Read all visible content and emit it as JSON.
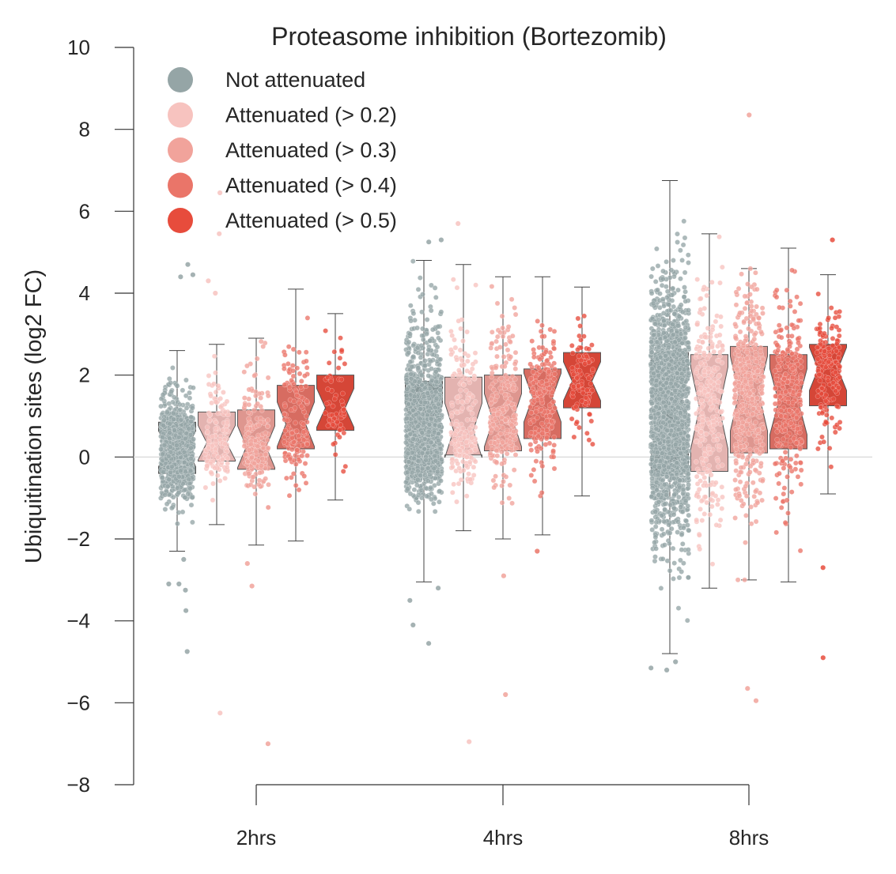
{
  "chart_data": {
    "type": "box",
    "title": "Proteasome inhibition (Bortezomib)",
    "xlabel": "",
    "ylabel": "Ubiquitination sites (log2 FC)",
    "ylim": [
      -8,
      10
    ],
    "yticks": [
      10,
      8,
      6,
      4,
      2,
      0,
      -2,
      -4,
      -6,
      -8
    ],
    "ytick_labels": [
      "10",
      "8",
      "6",
      "4",
      "2",
      "0",
      "−2",
      "−4",
      "−6",
      "−8"
    ],
    "categories": [
      "2hrs",
      "4hrs",
      "8hrs"
    ],
    "reference_line": 0,
    "legend_position": "upper-left",
    "overlay": "jittered strip points",
    "notched": true,
    "series": [
      {
        "name": "Not attenuated",
        "color": "#95a5a6",
        "boxes": [
          {
            "category": "2hrs",
            "q1": -0.4,
            "median": 0.2,
            "q3": 0.85,
            "whisker_low": -2.3,
            "whisker_high": 2.6,
            "n_points": 700,
            "outliers": [
              4.7,
              4.45,
              4.4,
              -2.5,
              -3.1,
              -3.1,
              -3.25,
              -3.75,
              -4.75
            ]
          },
          {
            "category": "4hrs",
            "q1": -0.15,
            "median": 0.6,
            "q3": 1.85,
            "whisker_low": -3.05,
            "whisker_high": 4.8,
            "n_points": 1000,
            "outliers": [
              5.3,
              5.25,
              -3.2,
              -3.5,
              -4.1,
              -4.55
            ]
          },
          {
            "category": "8hrs",
            "q1": -0.4,
            "median": 1.1,
            "q3": 2.55,
            "whisker_low": -4.8,
            "whisker_high": 6.75,
            "n_points": 1600,
            "outliers": [
              -5.15,
              -5.2,
              -5.0
            ]
          }
        ]
      },
      {
        "name": "Attenuated (> 0.2)",
        "color": "#f7c3bf",
        "boxes": [
          {
            "category": "2hrs",
            "q1": -0.1,
            "median": 0.35,
            "q3": 1.1,
            "whisker_low": -1.65,
            "whisker_high": 2.75,
            "n_points": 150,
            "outliers": [
              6.45,
              5.45,
              4.3,
              4.0,
              -6.25
            ]
          },
          {
            "category": "4hrs",
            "q1": 0.05,
            "median": 0.65,
            "q3": 1.95,
            "whisker_low": -1.8,
            "whisker_high": 4.7,
            "n_points": 200,
            "outliers": [
              5.7,
              -6.95
            ]
          },
          {
            "category": "8hrs",
            "q1": -0.35,
            "median": 1.2,
            "q3": 2.5,
            "whisker_low": -3.2,
            "whisker_high": 5.45,
            "n_points": 300,
            "outliers": []
          }
        ]
      },
      {
        "name": "Attenuated (> 0.3)",
        "color": "#f1a39b",
        "boxes": [
          {
            "category": "2hrs",
            "q1": -0.3,
            "median": 0.25,
            "q3": 1.15,
            "whisker_low": -2.15,
            "whisker_high": 2.9,
            "n_points": 200,
            "outliers": [
              -2.6,
              -3.15,
              -7.0
            ]
          },
          {
            "category": "4hrs",
            "q1": 0.15,
            "median": 0.9,
            "q3": 2.0,
            "whisker_low": -2.0,
            "whisker_high": 4.4,
            "n_points": 250,
            "outliers": [
              -2.9,
              -5.8
            ]
          },
          {
            "category": "8hrs",
            "q1": 0.1,
            "median": 1.55,
            "q3": 2.7,
            "whisker_low": -3.0,
            "whisker_high": 4.6,
            "n_points": 450,
            "outliers": [
              8.35,
              -5.65,
              -5.95
            ]
          }
        ]
      },
      {
        "name": "Attenuated (> 0.4)",
        "color": "#ea7569",
        "boxes": [
          {
            "category": "2hrs",
            "q1": 0.2,
            "median": 0.8,
            "q3": 1.75,
            "whisker_low": -2.05,
            "whisker_high": 4.1,
            "n_points": 150,
            "outliers": []
          },
          {
            "category": "4hrs",
            "q1": 0.45,
            "median": 1.45,
            "q3": 2.15,
            "whisker_low": -1.9,
            "whisker_high": 4.4,
            "n_points": 200,
            "outliers": [
              -2.3
            ]
          },
          {
            "category": "8hrs",
            "q1": 0.2,
            "median": 1.35,
            "q3": 2.5,
            "whisker_low": -3.05,
            "whisker_high": 5.1,
            "n_points": 300,
            "outliers": []
          }
        ]
      },
      {
        "name": "Attenuated (> 0.5)",
        "color": "#e74c3c",
        "boxes": [
          {
            "category": "2hrs",
            "q1": 0.65,
            "median": 1.2,
            "q3": 2.0,
            "whisker_low": -1.05,
            "whisker_high": 3.5,
            "n_points": 60,
            "outliers": []
          },
          {
            "category": "4hrs",
            "q1": 1.2,
            "median": 1.85,
            "q3": 2.55,
            "whisker_low": -0.95,
            "whisker_high": 4.15,
            "n_points": 90,
            "outliers": []
          },
          {
            "category": "8hrs",
            "q1": 1.25,
            "median": 2.15,
            "q3": 2.75,
            "whisker_low": -0.9,
            "whisker_high": 4.45,
            "n_points": 160,
            "outliers": [
              5.3,
              -2.7,
              -4.9
            ]
          }
        ]
      }
    ]
  }
}
